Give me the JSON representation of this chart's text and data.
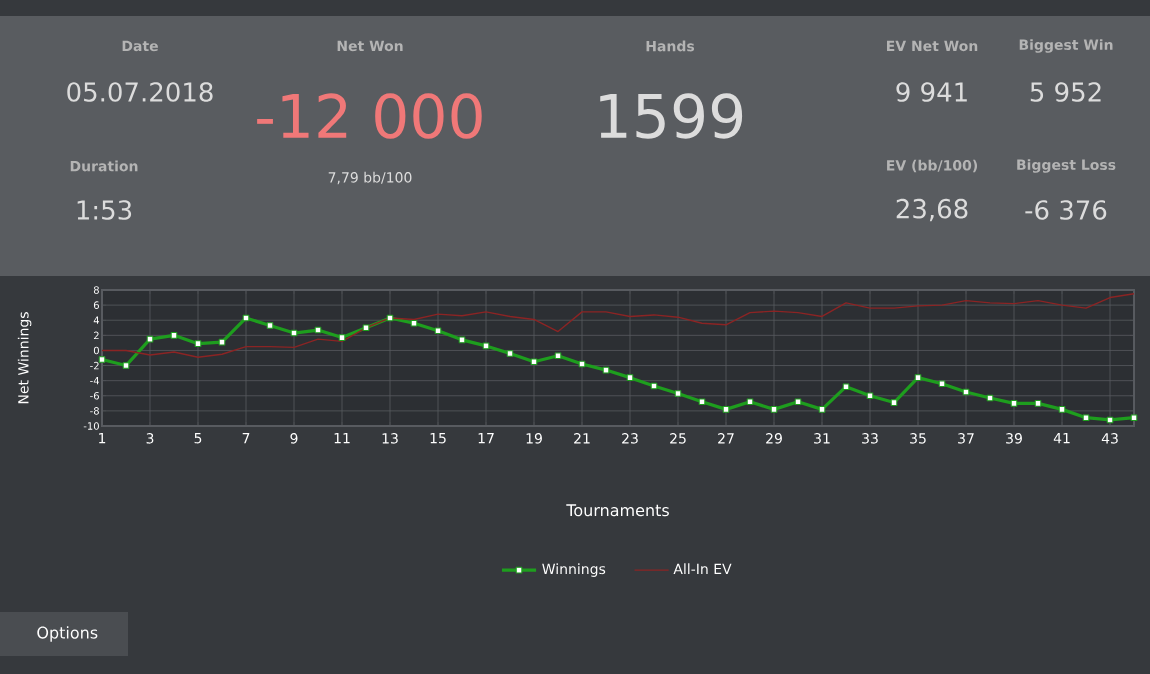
{
  "chart_data": [
    {
      "type": "other",
      "annotations": [
        "Date",
        "05.07.2018",
        "Duration",
        "1:53",
        "Net Won",
        "-12 000",
        "7,79 bb/100",
        "Hands",
        "1599",
        "EV Net Won",
        "9 941",
        "Biggest Win",
        "5 952",
        "EV (bb/100)",
        "23,68",
        "Biggest Loss",
        "-6 376"
      ]
    },
    {
      "type": "line",
      "xlabel": "Tournaments",
      "ylabel": "Net Winnings",
      "x": [
        1,
        2,
        3,
        4,
        5,
        6,
        7,
        8,
        9,
        10,
        11,
        12,
        13,
        14,
        15,
        16,
        17,
        18,
        19,
        20,
        21,
        22,
        23,
        24,
        25,
        26,
        27,
        28,
        29,
        30,
        31,
        32,
        33,
        34,
        35,
        36,
        37,
        38,
        39,
        40,
        41,
        42,
        43,
        44
      ],
      "xlim": [
        1,
        44
      ],
      "xticks": [
        1,
        3,
        5,
        7,
        9,
        11,
        13,
        15,
        17,
        19,
        21,
        23,
        25,
        27,
        29,
        31,
        33,
        35,
        37,
        39,
        41,
        43
      ],
      "ylim": [
        -10,
        8
      ],
      "yticks": [
        -10,
        -8,
        -6,
        -4,
        -2,
        0,
        2,
        4,
        6,
        8
      ],
      "grid": true,
      "legend": "bottom",
      "series": [
        {
          "name": "Winnings",
          "color": "#1e9e1e",
          "marker": "square",
          "values": [
            -1.2,
            -2.0,
            1.5,
            2.0,
            0.9,
            1.1,
            4.3,
            3.3,
            2.3,
            2.7,
            1.7,
            3.0,
            4.3,
            3.6,
            2.6,
            1.4,
            0.6,
            -0.4,
            -1.5,
            -0.7,
            -1.8,
            -2.6,
            -3.6,
            -4.7,
            -5.7,
            -6.8,
            -7.8,
            -6.8,
            -7.8,
            -6.8,
            -7.8,
            -4.8,
            -6.0,
            -6.9,
            -3.6,
            -4.4,
            -5.5,
            -6.3,
            -7.0,
            -7.0,
            -7.8,
            -8.9,
            -9.2,
            -8.9
          ]
        },
        {
          "name": "All-In EV",
          "color": "#8b2424",
          "marker": "none",
          "values": [
            0,
            0,
            -0.6,
            -0.2,
            -0.9,
            -0.5,
            0.5,
            0.5,
            0.4,
            1.5,
            1.2,
            3.0,
            4.3,
            4.1,
            4.8,
            4.6,
            5.1,
            4.5,
            4.1,
            2.5,
            5.1,
            5.1,
            4.5,
            4.7,
            4.4,
            3.6,
            3.4,
            5.0,
            5.2,
            5.0,
            4.5,
            6.3,
            5.6,
            5.6,
            5.9,
            6.0,
            6.6,
            6.3,
            6.2,
            6.6,
            6.0,
            5.6,
            7.0,
            7.5
          ]
        }
      ],
      "annotations": [
        "Options"
      ]
    }
  ]
}
